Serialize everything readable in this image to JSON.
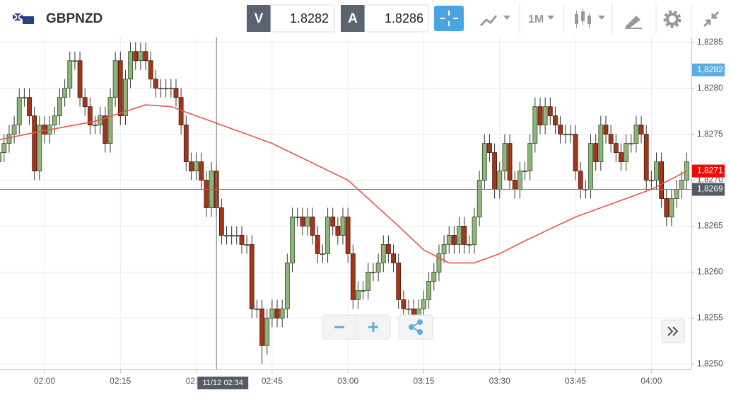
{
  "header": {
    "symbol": "GBPNZD",
    "sell_label": "V",
    "sell_price": "1.8282",
    "buy_label": "A",
    "buy_price": "1.8286",
    "timeframe": "1M"
  },
  "chart_data": {
    "type": "candlestick",
    "x": [
      "01:51",
      "01:52",
      "01:53",
      "01:54",
      "01:55",
      "01:56",
      "01:57",
      "01:58",
      "01:59",
      "02:00",
      "02:01",
      "02:02",
      "02:03",
      "02:04",
      "02:05",
      "02:06",
      "02:07",
      "02:08",
      "02:09",
      "02:10",
      "02:11",
      "02:12",
      "02:13",
      "02:14",
      "02:15",
      "02:16",
      "02:17",
      "02:18",
      "02:19",
      "02:20",
      "02:21",
      "02:22",
      "02:23",
      "02:24",
      "02:25",
      "02:26",
      "02:27",
      "02:28",
      "02:29",
      "02:30",
      "02:31",
      "02:32",
      "02:33",
      "02:34",
      "02:35",
      "02:36",
      "02:37",
      "02:38",
      "02:39",
      "02:40",
      "02:41",
      "02:42",
      "02:43",
      "02:44",
      "02:45",
      "02:46",
      "02:47",
      "02:48",
      "02:49",
      "02:50",
      "02:51",
      "02:52",
      "02:53",
      "02:54",
      "02:55",
      "02:56",
      "02:57",
      "02:58",
      "02:59",
      "03:00",
      "03:01",
      "03:02",
      "03:03",
      "03:04",
      "03:05",
      "03:06",
      "03:07",
      "03:08",
      "03:09",
      "03:10",
      "03:11",
      "03:12",
      "03:13",
      "03:14",
      "03:15",
      "03:16",
      "03:17",
      "03:18",
      "03:19",
      "03:20",
      "03:21",
      "03:22",
      "03:23",
      "03:24",
      "03:25",
      "03:26",
      "03:27",
      "03:28",
      "03:29",
      "03:30",
      "03:31",
      "03:32",
      "03:33",
      "03:34",
      "03:35",
      "03:36",
      "03:37",
      "03:38",
      "03:39",
      "03:40",
      "03:41",
      "03:42",
      "03:43",
      "03:44",
      "03:45",
      "03:46",
      "03:47",
      "03:48",
      "03:49",
      "03:50",
      "03:51",
      "03:52",
      "03:53",
      "03:54",
      "03:55",
      "03:56",
      "03:57",
      "03:58",
      "03:59",
      "04:00",
      "04:01",
      "04:02",
      "04:03",
      "04:04",
      "04:05",
      "04:06",
      "04:07"
    ],
    "open": [
      1.8272,
      1.8273,
      1.8274,
      1.8275,
      1.8276,
      1.8279,
      1.8279,
      1.8277,
      1.8271,
      1.8276,
      1.8275,
      1.8276,
      1.8277,
      1.8279,
      1.828,
      1.8283,
      1.8283,
      1.8279,
      1.8278,
      1.8276,
      1.8276,
      1.8277,
      1.8274,
      1.8279,
      1.8283,
      1.8277,
      1.8281,
      1.8284,
      1.8283,
      1.8284,
      1.8283,
      1.8281,
      1.828,
      1.828,
      1.828,
      1.828,
      1.8279,
      1.8276,
      1.8272,
      1.8271,
      1.8272,
      1.827,
      1.8267,
      1.8271,
      1.8267,
      1.8264,
      1.8264,
      1.8264,
      1.8264,
      1.8263,
      1.8263,
      1.8256,
      1.8256,
      1.8252,
      1.8255,
      1.8256,
      1.8255,
      1.8256,
      1.8261,
      1.8266,
      1.8266,
      1.8265,
      1.8266,
      1.8264,
      1.8262,
      1.8262,
      1.8266,
      1.8265,
      1.8264,
      1.8266,
      1.8262,
      1.8257,
      1.8258,
      1.8258,
      1.826,
      1.826,
      1.8261,
      1.8263,
      1.8262,
      1.8261,
      1.8257,
      1.8256,
      1.8256,
      1.8255,
      1.8256,
      1.8257,
      1.8259,
      1.826,
      1.8262,
      1.8263,
      1.8264,
      1.8263,
      1.8265,
      1.8263,
      1.8263,
      1.8266,
      1.827,
      1.8274,
      1.8273,
      1.8269,
      1.8271,
      1.8274,
      1.827,
      1.8269,
      1.8271,
      1.8271,
      1.8274,
      1.8278,
      1.8276,
      1.8278,
      1.8277,
      1.8276,
      1.8275,
      1.8275,
      1.8275,
      1.8271,
      1.8269,
      1.8269,
      1.8274,
      1.8272,
      1.8276,
      1.8275,
      1.8274,
      1.8273,
      1.8272,
      1.8274,
      1.8274,
      1.8276,
      1.8275,
      1.827,
      1.827,
      1.8272,
      1.8268,
      1.8266,
      1.8268,
      1.8269,
      1.827
    ],
    "high": [
      1.8274,
      1.8275,
      1.8276,
      1.8277,
      1.828,
      1.828,
      1.828,
      1.8278,
      1.8277,
      1.8277,
      1.8277,
      1.8278,
      1.828,
      1.8281,
      1.8284,
      1.8284,
      1.8284,
      1.828,
      1.8279,
      1.8277,
      1.8278,
      1.8278,
      1.828,
      1.8284,
      1.8284,
      1.8282,
      1.8285,
      1.8285,
      1.8285,
      1.8285,
      1.8284,
      1.8282,
      1.8281,
      1.8281,
      1.8281,
      1.8281,
      1.828,
      1.8277,
      1.8273,
      1.8273,
      1.8273,
      1.8271,
      1.8272,
      1.8272,
      1.8268,
      1.8265,
      1.8265,
      1.8265,
      1.8265,
      1.8264,
      1.8264,
      1.8257,
      1.8257,
      1.8256,
      1.8257,
      1.8257,
      1.8257,
      1.8262,
      1.8267,
      1.8267,
      1.8267,
      1.8267,
      1.8267,
      1.8265,
      1.8263,
      1.8267,
      1.8267,
      1.8266,
      1.8267,
      1.8267,
      1.8263,
      1.8259,
      1.8259,
      1.8261,
      1.8261,
      1.8262,
      1.8264,
      1.8264,
      1.8263,
      1.8262,
      1.8258,
      1.8257,
      1.8257,
      1.8257,
      1.8258,
      1.826,
      1.8261,
      1.8263,
      1.8264,
      1.8265,
      1.8265,
      1.8266,
      1.8266,
      1.8264,
      1.8267,
      1.8271,
      1.8275,
      1.8275,
      1.8274,
      1.8272,
      1.8275,
      1.8275,
      1.8271,
      1.8272,
      1.8272,
      1.8275,
      1.8279,
      1.8279,
      1.8279,
      1.8279,
      1.8278,
      1.8277,
      1.8276,
      1.8276,
      1.8276,
      1.8272,
      1.827,
      1.8275,
      1.8275,
      1.8277,
      1.8277,
      1.8276,
      1.8275,
      1.8274,
      1.8275,
      1.8275,
      1.8277,
      1.8277,
      1.8276,
      1.8271,
      1.8273,
      1.8273,
      1.8269,
      1.8269,
      1.827,
      1.8271,
      1.8273
    ],
    "low": [
      1.8271,
      1.8272,
      1.8273,
      1.8274,
      1.8275,
      1.8278,
      1.8276,
      1.827,
      1.827,
      1.8274,
      1.8274,
      1.8275,
      1.8276,
      1.8278,
      1.8279,
      1.8282,
      1.8278,
      1.8277,
      1.8275,
      1.8275,
      1.8275,
      1.8273,
      1.8273,
      1.8278,
      1.8276,
      1.8276,
      1.828,
      1.8282,
      1.8282,
      1.8282,
      1.828,
      1.8279,
      1.8279,
      1.8279,
      1.8279,
      1.8278,
      1.8275,
      1.8271,
      1.827,
      1.827,
      1.8269,
      1.8266,
      1.8266,
      1.8266,
      1.8263,
      1.8263,
      1.8263,
      1.8263,
      1.8262,
      1.8262,
      1.8255,
      1.8255,
      1.825,
      1.8251,
      1.8254,
      1.8254,
      1.8254,
      1.8255,
      1.826,
      1.8265,
      1.8264,
      1.8264,
      1.8263,
      1.8261,
      1.8261,
      1.8261,
      1.8264,
      1.8263,
      1.8263,
      1.8261,
      1.8256,
      1.8256,
      1.8257,
      1.8257,
      1.8259,
      1.8259,
      1.826,
      1.8261,
      1.826,
      1.8256,
      1.8255,
      1.8255,
      1.8254,
      1.8254,
      1.8255,
      1.8256,
      1.8258,
      1.8259,
      1.8261,
      1.8262,
      1.8262,
      1.8262,
      1.8262,
      1.8262,
      1.8262,
      1.8265,
      1.8269,
      1.8272,
      1.8268,
      1.8268,
      1.827,
      1.8269,
      1.8268,
      1.8268,
      1.827,
      1.827,
      1.8273,
      1.8275,
      1.8275,
      1.8276,
      1.8275,
      1.8274,
      1.8274,
      1.8274,
      1.827,
      1.8268,
      1.8268,
      1.8268,
      1.8271,
      1.8271,
      1.8274,
      1.8273,
      1.8272,
      1.8271,
      1.8271,
      1.8273,
      1.8273,
      1.8274,
      1.8269,
      1.8269,
      1.8269,
      1.8267,
      1.8265,
      1.8265,
      1.8267,
      1.8268,
      1.8269
    ],
    "close": [
      1.8273,
      1.8274,
      1.8275,
      1.8276,
      1.8279,
      1.8279,
      1.8277,
      1.8271,
      1.8276,
      1.8275,
      1.8276,
      1.8277,
      1.8279,
      1.828,
      1.8283,
      1.8283,
      1.8279,
      1.8278,
      1.8276,
      1.8276,
      1.8277,
      1.8274,
      1.8279,
      1.8283,
      1.8277,
      1.8281,
      1.8284,
      1.8283,
      1.8284,
      1.8283,
      1.8281,
      1.828,
      1.828,
      1.828,
      1.828,
      1.8279,
      1.8276,
      1.8272,
      1.8271,
      1.8272,
      1.827,
      1.8267,
      1.8271,
      1.8267,
      1.8264,
      1.8264,
      1.8264,
      1.8264,
      1.8263,
      1.8263,
      1.8256,
      1.8256,
      1.8252,
      1.8255,
      1.8256,
      1.8255,
      1.8256,
      1.8261,
      1.8266,
      1.8266,
      1.8265,
      1.8266,
      1.8264,
      1.8262,
      1.8262,
      1.8266,
      1.8265,
      1.8264,
      1.8266,
      1.8262,
      1.8257,
      1.8258,
      1.8258,
      1.826,
      1.826,
      1.8261,
      1.8263,
      1.8262,
      1.8261,
      1.8257,
      1.8256,
      1.8256,
      1.8255,
      1.8256,
      1.8257,
      1.8259,
      1.826,
      1.8262,
      1.8263,
      1.8264,
      1.8263,
      1.8265,
      1.8263,
      1.8263,
      1.8266,
      1.827,
      1.8274,
      1.8273,
      1.8269,
      1.8271,
      1.8274,
      1.827,
      1.8269,
      1.8271,
      1.8271,
      1.8274,
      1.8278,
      1.8276,
      1.8278,
      1.8277,
      1.8276,
      1.8275,
      1.8275,
      1.8275,
      1.8271,
      1.8269,
      1.8269,
      1.8274,
      1.8272,
      1.8276,
      1.8275,
      1.8274,
      1.8273,
      1.8272,
      1.8274,
      1.8274,
      1.8276,
      1.8275,
      1.827,
      1.827,
      1.8272,
      1.8268,
      1.8266,
      1.8268,
      1.8269,
      1.827,
      1.8272
    ],
    "up_color": "#8fb47c",
    "down_color": "#a2361b",
    "ma": {
      "color": "#e8554f",
      "x": [
        "01:51",
        "02:00",
        "02:10",
        "02:15",
        "02:20",
        "02:25",
        "02:30",
        "02:35",
        "02:45",
        "03:00",
        "03:10",
        "03:15",
        "03:20",
        "03:25",
        "03:30",
        "03:35",
        "03:45",
        "03:50",
        "03:55",
        "04:00",
        "04:07"
      ],
      "values": [
        1.82744,
        1.82754,
        1.82764,
        1.82773,
        1.82782,
        1.8278,
        1.8277,
        1.8276,
        1.8274,
        1.827,
        1.8265,
        1.82624,
        1.8261,
        1.8261,
        1.8262,
        1.82634,
        1.8266,
        1.8267,
        1.8268,
        1.8269,
        1.8271
      ]
    },
    "ylim": [
      1.82494,
      1.82856
    ],
    "yticks": [
      {
        "value": 1.825,
        "label": "1,8250"
      },
      {
        "value": 1.8255,
        "label": "1,8255"
      },
      {
        "value": 1.826,
        "label": "1,8260"
      },
      {
        "value": 1.8265,
        "label": "1,8265"
      },
      {
        "value": 1.827,
        "label": "1,8270"
      },
      {
        "value": 1.8275,
        "label": "1,8275"
      },
      {
        "value": 1.828,
        "label": "1,8280"
      },
      {
        "value": 1.8285,
        "label": "1,8285"
      }
    ],
    "xticks": [
      "02:00",
      "02:15",
      "02:30",
      "02:45",
      "03:00",
      "03:15",
      "03:30",
      "03:45",
      "04:00"
    ],
    "grid": true,
    "price_labels": [
      {
        "value": 1.8282,
        "label": "1,8282",
        "color": "#5aaee0"
      },
      {
        "value": 1.8271,
        "label": "1,8271",
        "color": "#ee0a0a"
      }
    ],
    "crosshair": {
      "x_label": "11/12 02:34",
      "y_value": 1.8269,
      "y_label": "1,8269"
    }
  }
}
